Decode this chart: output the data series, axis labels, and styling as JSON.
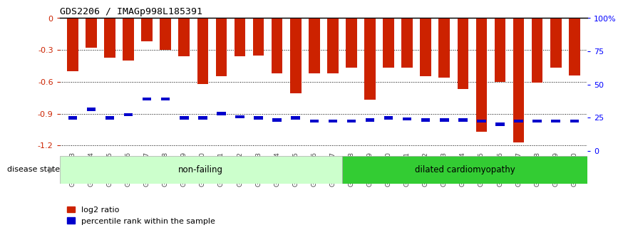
{
  "title": "GDS2206 / IMAGp998L185391",
  "samples": [
    "GSM82393",
    "GSM82394",
    "GSM82395",
    "GSM82396",
    "GSM82397",
    "GSM82398",
    "GSM82399",
    "GSM82400",
    "GSM82401",
    "GSM82402",
    "GSM82403",
    "GSM82404",
    "GSM82405",
    "GSM82406",
    "GSM82407",
    "GSM82408",
    "GSM82409",
    "GSM82410",
    "GSM82411",
    "GSM82412",
    "GSM82413",
    "GSM82414",
    "GSM82415",
    "GSM82416",
    "GSM82417",
    "GSM82418",
    "GSM82419",
    "GSM82420"
  ],
  "log2_ratios": [
    -0.5,
    -0.28,
    -0.37,
    -0.4,
    -0.22,
    -0.3,
    -0.36,
    -0.62,
    -0.55,
    -0.36,
    -0.35,
    -0.52,
    -0.71,
    -0.52,
    -0.52,
    -0.47,
    -0.77,
    -0.47,
    -0.47,
    -0.55,
    -0.56,
    -0.67,
    -1.07,
    -0.6,
    -1.17,
    -0.61,
    -0.47,
    -0.54
  ],
  "percentile_ranks": [
    -0.94,
    -0.86,
    -0.94,
    -0.91,
    -0.76,
    -0.76,
    -0.94,
    -0.94,
    -0.9,
    -0.93,
    -0.94,
    -0.96,
    -0.94,
    -0.97,
    -0.97,
    -0.97,
    -0.96,
    -0.94,
    -0.95,
    -0.96,
    -0.96,
    -0.96,
    -0.97,
    -1.0,
    -0.97,
    -0.97,
    -0.97,
    -0.97
  ],
  "non_failing_count": 15,
  "bar_color": "#cc2200",
  "marker_color": "#0000cc",
  "nf_bg_color": "#ccffcc",
  "dc_bg_color": "#33cc33",
  "ylim_left": [
    -1.25,
    0.0
  ],
  "yticks_left": [
    0.0,
    -0.3,
    -0.6,
    -0.9,
    -1.2
  ],
  "ytick_left_labels": [
    "0",
    "-0.3",
    "-0.6",
    "-0.9",
    "-1.2"
  ],
  "yticks_right": [
    0,
    25,
    50,
    75,
    100
  ],
  "ytick_right_labels": [
    "0",
    "25",
    "50",
    "75",
    "100%"
  ],
  "disease_state_label": "disease state",
  "nf_label": "non-failing",
  "dc_label": "dilated cardiomyopathy",
  "legend_red": "log2 ratio",
  "legend_blue": "percentile rank within the sample"
}
